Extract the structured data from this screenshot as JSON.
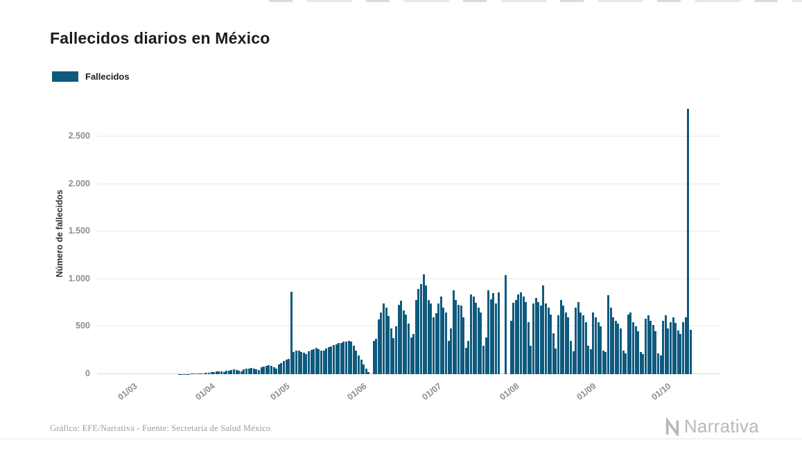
{
  "title": "Fallecidos diarios en México",
  "legend": {
    "label": "Fallecidos"
  },
  "footer": {
    "credit": "Gráfico: EFE/Narrativa - Fuente: Secretaría de Salud México",
    "brand": "Narrativa"
  },
  "colors": {
    "bar": "#0e5a7e",
    "grid": "#e8e8e8",
    "axis_text": "#8d8d8d",
    "title_text": "#1b1b1b",
    "footer_text": "#a09c98",
    "brand_gray": "#b9b9b9"
  },
  "chart_data": {
    "type": "bar",
    "title": "Fallecidos diarios en México",
    "xlabel": "",
    "ylabel": "Número de fallecidos",
    "series_name": "Fallecidos",
    "granularity": "daily",
    "start_label": "01/03",
    "ylim": [
      0,
      2800
    ],
    "grid": true,
    "legend_position": "top-left",
    "y_ticks": [
      {
        "label": "0",
        "value": 0
      },
      {
        "label": "500",
        "value": 500
      },
      {
        "label": "1.000",
        "value": 1000
      },
      {
        "label": "1.500",
        "value": 1500
      },
      {
        "label": "2.000",
        "value": 2000
      },
      {
        "label": "2.500",
        "value": 2500
      }
    ],
    "x_ticks": [
      {
        "label": "01/03",
        "index": 0
      },
      {
        "label": "01/04",
        "index": 31
      },
      {
        "label": "01/05",
        "index": 61
      },
      {
        "label": "01/06",
        "index": 92
      },
      {
        "label": "01/07",
        "index": 122
      },
      {
        "label": "01/08",
        "index": 153
      },
      {
        "label": "01/09",
        "index": 184
      },
      {
        "label": "01/10",
        "index": 214
      }
    ],
    "values": [
      0,
      0,
      0,
      0,
      0,
      0,
      0,
      0,
      0,
      0,
      0,
      0,
      0,
      0,
      0,
      0,
      0,
      0,
      1,
      1,
      2,
      2,
      3,
      4,
      5,
      6,
      6,
      8,
      10,
      12,
      16,
      20,
      24,
      28,
      30,
      26,
      22,
      34,
      40,
      44,
      48,
      42,
      36,
      30,
      52,
      58,
      62,
      66,
      58,
      48,
      42,
      72,
      80,
      88,
      96,
      84,
      70,
      60,
      104,
      120,
      135,
      150,
      160,
      870,
      230,
      250,
      245,
      235,
      225,
      215,
      240,
      255,
      265,
      275,
      260,
      250,
      245,
      270,
      285,
      295,
      305,
      315,
      325,
      330,
      340,
      345,
      350,
      340,
      300,
      250,
      200,
      150,
      100,
      60,
      20,
      0,
      350,
      370,
      575,
      650,
      745,
      700,
      610,
      480,
      380,
      500,
      730,
      770,
      670,
      630,
      530,
      390,
      420,
      780,
      900,
      950,
      1050,
      930,
      780,
      740,
      600,
      640,
      740,
      820,
      700,
      650,
      350,
      480,
      880,
      780,
      730,
      720,
      600,
      280,
      350,
      840,
      820,
      750,
      700,
      650,
      300,
      390,
      880,
      790,
      850,
      740,
      860,
      0,
      0,
      1040,
      0,
      560,
      750,
      780,
      840,
      860,
      820,
      760,
      550,
      300,
      740,
      800,
      760,
      720,
      930,
      740,
      700,
      630,
      430,
      270,
      620,
      780,
      720,
      650,
      600,
      350,
      240,
      700,
      760,
      650,
      620,
      550,
      300,
      260,
      650,
      600,
      550,
      500,
      250,
      230,
      830,
      700,
      600,
      560,
      530,
      480,
      250,
      220,
      630,
      650,
      550,
      500,
      450,
      230,
      210,
      580,
      620,
      560,
      520,
      450,
      220,
      200,
      560,
      620,
      480,
      550,
      600,
      540,
      460,
      420,
      550,
      600,
      2790,
      470
    ]
  }
}
